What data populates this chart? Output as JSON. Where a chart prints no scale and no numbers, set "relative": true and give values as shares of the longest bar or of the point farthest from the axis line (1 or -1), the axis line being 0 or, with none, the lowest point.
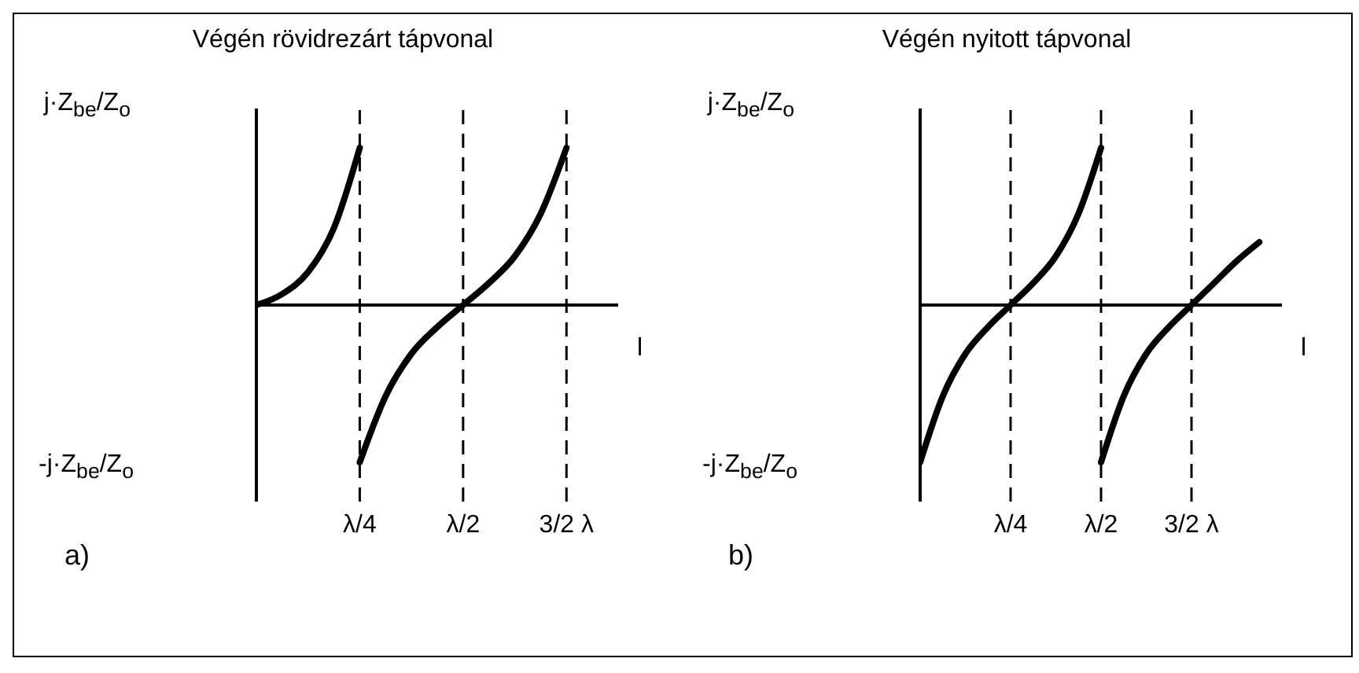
{
  "chart_data": [
    {
      "type": "line",
      "title": "Végén rövidrezárt tápvonal",
      "relative": true,
      "ylabel": "j·Z$_{be}$/Z$_{o}$",
      "xlabel": "l",
      "marker": "none",
      "line_style": "solid",
      "categories": [
        null,
        null,
        null,
        null,
        "λ/4",
        null,
        null,
        null,
        "λ/2",
        null,
        null,
        null,
        "3/2 λ",
        null,
        null
      ],
      "series": [
        {
          "color": "#000000",
          "values": [
            0,
            0.07,
            0.21,
            0.49,
            1,
            null,
            null,
            null,
            null,
            null,
            null,
            null,
            null,
            null,
            null
          ]
        },
        {
          "color": "#000000",
          "values": [
            null,
            null,
            null,
            null,
            -1,
            -0.58,
            -0.31,
            -0.14,
            0,
            0.14,
            0.31,
            0.58,
            1,
            null,
            null
          ]
        }
      ],
      "ref_lines": [
        {
          "axis": "x",
          "value": "λ/4",
          "line_style": "dashed"
        },
        {
          "axis": "x",
          "value": "λ/2",
          "line_style": "dashed"
        },
        {
          "axis": "x",
          "value": "3/2 λ",
          "line_style": "dashed"
        }
      ],
      "annotations": [
        "-j·Z$_{be}$/Z$_{o}$",
        "a)"
      ]
    },
    {
      "type": "line",
      "title": "Végén nyitott tápvonal",
      "relative": true,
      "ylabel": "j·Z$_{be}$/Z$_{o}$",
      "xlabel": "l",
      "marker": "none",
      "line_style": "solid",
      "categories": [
        null,
        null,
        null,
        null,
        "λ/4",
        null,
        null,
        null,
        "λ/2",
        null,
        null,
        null,
        "3/2 λ",
        null,
        null,
        null,
        null
      ],
      "series": [
        {
          "color": "#000000",
          "values": [
            -1,
            -0.58,
            -0.31,
            -0.14,
            0,
            0.14,
            0.31,
            0.58,
            1,
            null,
            null,
            null,
            null,
            null,
            null,
            null,
            null
          ]
        },
        {
          "color": "#000000",
          "values": [
            null,
            null,
            null,
            null,
            null,
            null,
            null,
            null,
            -1,
            -0.58,
            -0.31,
            -0.14,
            0,
            0.14,
            0.28,
            0.4,
            null
          ]
        }
      ],
      "ref_lines": [
        {
          "axis": "x",
          "value": "λ/4",
          "line_style": "dashed"
        },
        {
          "axis": "x",
          "value": "λ/2",
          "line_style": "dashed"
        },
        {
          "axis": "x",
          "value": "3/2 λ",
          "line_style": "dashed"
        }
      ],
      "annotations": [
        "-j·Z$_{be}$/Z$_{o}$",
        "b)"
      ]
    }
  ]
}
